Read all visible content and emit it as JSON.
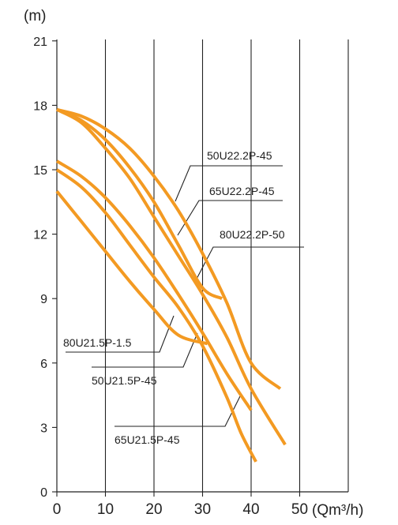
{
  "chart_data": {
    "type": "line",
    "ylabel": "(m)",
    "xlabel": "(Qm³/h)",
    "xlim": [
      0,
      60
    ],
    "ylim": [
      0,
      21
    ],
    "x_ticks": [
      0,
      10,
      20,
      30,
      40,
      50
    ],
    "y_ticks": [
      0,
      3,
      6,
      9,
      12,
      15,
      18,
      21
    ],
    "grid": {
      "vertical": true,
      "horizontal": false
    },
    "line_color": "#f39a22",
    "series": [
      {
        "name": "50U22.2P-45",
        "x": [
          0,
          5,
          10,
          15,
          20,
          25,
          30,
          34
        ],
        "y": [
          17.8,
          17.3,
          16.4,
          15.1,
          13.5,
          11.5,
          9.5,
          9.0
        ]
      },
      {
        "name": "65U22.2P-45",
        "x": [
          0,
          5,
          10,
          15,
          20,
          25,
          30,
          35,
          40,
          46
        ],
        "y": [
          17.8,
          17.5,
          16.9,
          16.0,
          14.7,
          13.1,
          11.1,
          8.8,
          6.0,
          4.8
        ]
      },
      {
        "name": "80U22.2P-50",
        "x": [
          0,
          5,
          10,
          15,
          20,
          25,
          30,
          35,
          40,
          47
        ],
        "y": [
          17.8,
          17.2,
          16.0,
          14.6,
          12.8,
          11.0,
          9.2,
          7.2,
          4.8,
          2.2
        ]
      },
      {
        "name": "80U21.5P-1.5",
        "x": [
          0,
          5,
          10,
          15,
          20,
          25,
          31
        ],
        "y": [
          14.0,
          12.6,
          11.2,
          9.8,
          8.5,
          7.3,
          6.9
        ]
      },
      {
        "name": "50U21.5P-45",
        "x": [
          0,
          5,
          10,
          15,
          20,
          25,
          30,
          35,
          40
        ],
        "y": [
          15.4,
          14.7,
          13.7,
          12.4,
          10.9,
          9.2,
          7.4,
          5.5,
          3.8
        ]
      },
      {
        "name": "65U21.5P-45",
        "x": [
          0,
          5,
          10,
          15,
          20,
          25,
          30,
          35,
          38,
          41
        ],
        "y": [
          15.0,
          14.2,
          13.0,
          11.5,
          10.0,
          8.6,
          6.8,
          4.4,
          2.7,
          1.4
        ]
      }
    ],
    "annotations": [
      {
        "text": "50U22.2P-45"
      },
      {
        "text": "65U22.2P-45"
      },
      {
        "text": "80U22.2P-50"
      },
      {
        "text": "80U21.5P-1.5"
      },
      {
        "text": "50U21.5P-45"
      },
      {
        "text": "65U21.5P-45"
      }
    ]
  }
}
